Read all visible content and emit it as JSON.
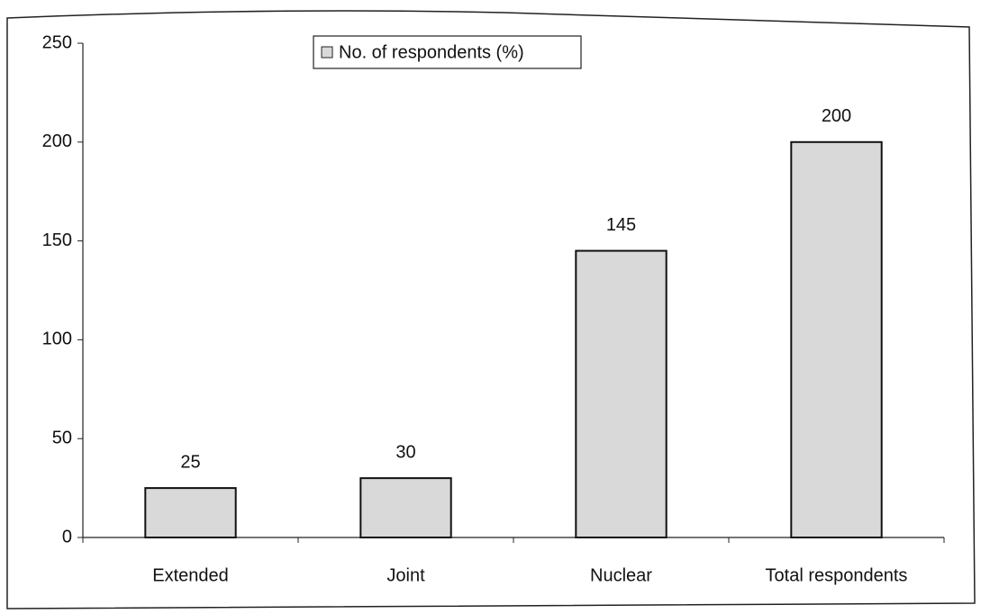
{
  "chart_data": {
    "type": "bar",
    "categories": [
      "Extended",
      "Joint",
      "Nuclear",
      "Total respondents"
    ],
    "series": [
      {
        "name": "No. of respondents (%)",
        "color": "#d9d9d9",
        "values": [
          25,
          30,
          145,
          200
        ]
      }
    ],
    "ylim": [
      0,
      250
    ],
    "yticks": [
      0,
      50,
      100,
      150,
      200,
      250
    ],
    "grid": false,
    "legend": "top"
  }
}
